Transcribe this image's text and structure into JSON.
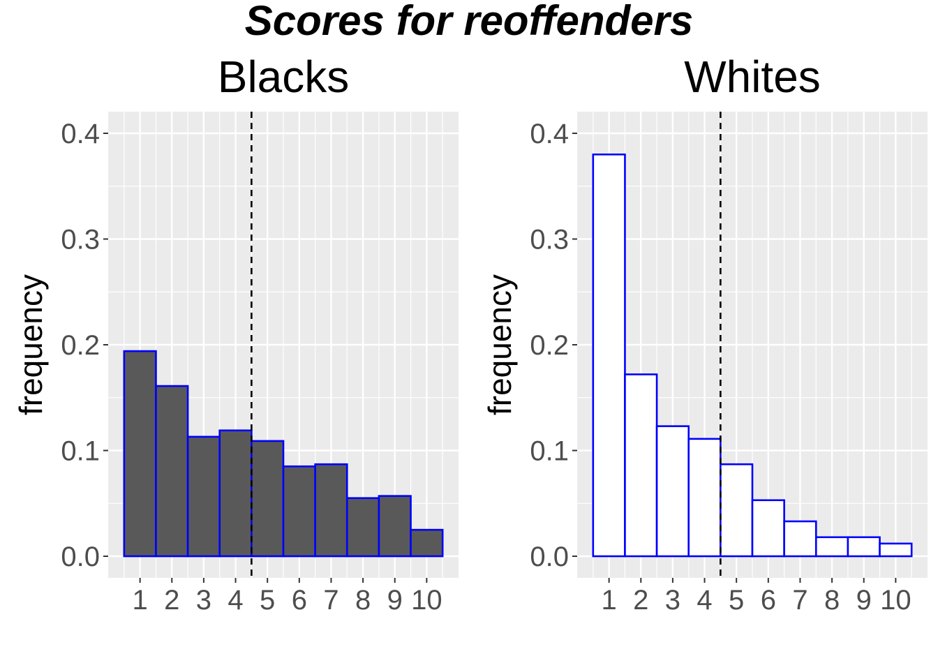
{
  "chart_data": {
    "type": "bar",
    "title": "Scores for reoffenders",
    "categories": [
      "1",
      "2",
      "3",
      "4",
      "5",
      "6",
      "7",
      "8",
      "9",
      "10"
    ],
    "ylabel": "frequency",
    "xlabel": "",
    "ylim": [
      0,
      0.4
    ],
    "yticks": [
      "0.0",
      "0.1",
      "0.2",
      "0.3",
      "0.4"
    ],
    "threshold": 4.5,
    "colors": {
      "bar_outline": "#0000ff",
      "panel_bg": "#ebebeb",
      "grid": "#ffffff",
      "threshold_line": "#000000"
    },
    "panels": [
      {
        "name": "Blacks",
        "fill": "#595959",
        "values": [
          0.194,
          0.161,
          0.113,
          0.119,
          0.109,
          0.085,
          0.087,
          0.055,
          0.057,
          0.025
        ]
      },
      {
        "name": "Whites",
        "fill": "#ffffff",
        "values": [
          0.38,
          0.172,
          0.123,
          0.111,
          0.087,
          0.053,
          0.033,
          0.018,
          0.018,
          0.012
        ]
      }
    ]
  }
}
